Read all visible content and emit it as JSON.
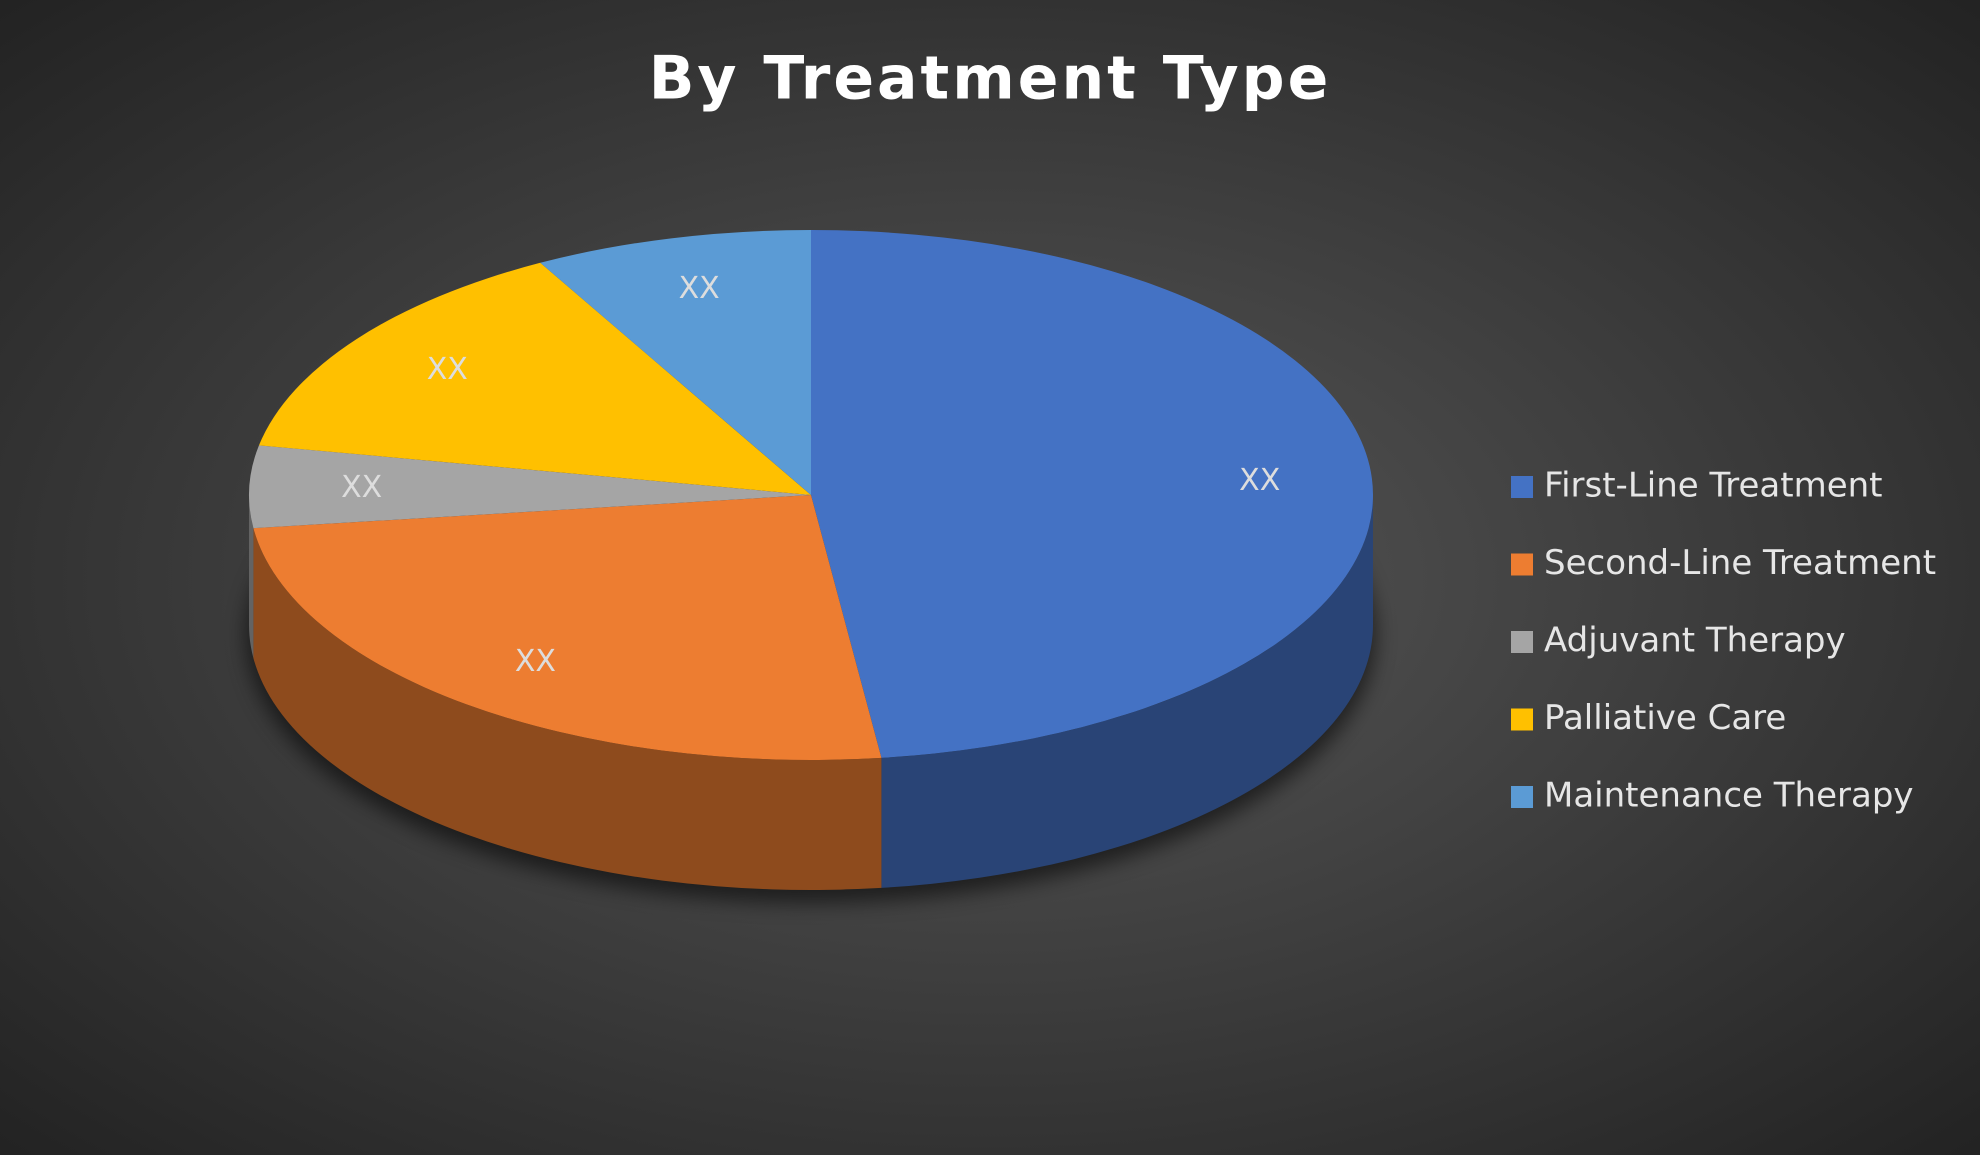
{
  "chart_data": {
    "type": "pie3d",
    "title": "By Treatment Type",
    "categories": [
      "First-Line Treatment",
      "Second-Line Treatment",
      "Adjuvant Therapy",
      "Palliative Care",
      "Maintenance Therapy"
    ],
    "values": [
      48,
      25,
      5,
      14,
      8
    ],
    "value_labels": [
      "XX",
      "XX",
      "XX",
      "XX",
      "XX"
    ],
    "colors": [
      "#4472c4",
      "#ed7d31",
      "#a5a5a5",
      "#ffc000",
      "#5b9bd5"
    ],
    "legend": "right"
  }
}
